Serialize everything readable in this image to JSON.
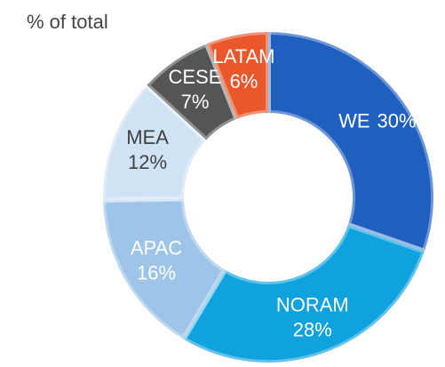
{
  "chart_data": {
    "type": "donut",
    "title": "% of total",
    "categories": [
      "WE",
      "NORAM",
      "APAC",
      "MEA",
      "CESE",
      "LATAM"
    ],
    "values": [
      30,
      28,
      16,
      12,
      7,
      6
    ],
    "value_labels": [
      "30%",
      "28%",
      "16%",
      "12%",
      "7%",
      "6%"
    ],
    "colors": [
      "#1f5fc0",
      "#10a2de",
      "#9ec5e8",
      "#d0e3f5",
      "#555555",
      "#e9572b"
    ]
  }
}
